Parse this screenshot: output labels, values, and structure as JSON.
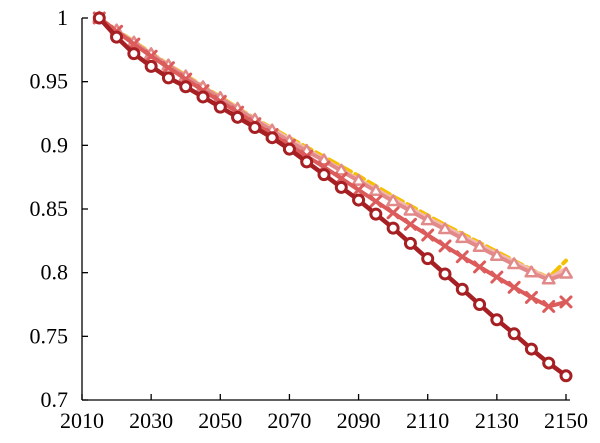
{
  "chart_data": {
    "type": "line",
    "title": "",
    "xlabel": "",
    "ylabel": "",
    "xlim": [
      2010,
      2150
    ],
    "ylim": [
      0.7,
      1.0
    ],
    "x_ticks": [
      "2010",
      "2030",
      "2050",
      "2070",
      "2090",
      "2110",
      "2130",
      "2150"
    ],
    "y_ticks": [
      "0.7",
      "0.75",
      "0.8",
      "0.85",
      "0.9",
      "0.95",
      "1"
    ],
    "grid": false,
    "legend": "none",
    "x": [
      2015,
      2020,
      2025,
      2030,
      2035,
      2040,
      2045,
      2050,
      2055,
      2060,
      2065,
      2070,
      2075,
      2080,
      2085,
      2090,
      2095,
      2100,
      2105,
      2110,
      2115,
      2120,
      2125,
      2130,
      2135,
      2140,
      2145,
      2150
    ],
    "series": [
      {
        "color": "#f5c000",
        "marker": "none",
        "dash": true,
        "values": [
          1.0,
          0.9905,
          0.9815,
          0.9725,
          0.9635,
          0.955,
          0.9465,
          0.938,
          0.9295,
          0.921,
          0.9135,
          0.906,
          0.8985,
          0.891,
          0.8835,
          0.876,
          0.868,
          0.86,
          0.8525,
          0.845,
          0.8375,
          0.8305,
          0.8235,
          0.8165,
          0.8095,
          0.8025,
          0.796,
          0.8095
        ]
      },
      {
        "color": "#f3b8ae",
        "marker": "none",
        "dash": false,
        "values": [
          1.0,
          0.99,
          0.981,
          0.972,
          0.963,
          0.9545,
          0.946,
          0.9375,
          0.929,
          0.9205,
          0.913,
          0.905,
          0.897,
          0.889,
          0.881,
          0.873,
          0.8655,
          0.858,
          0.8505,
          0.843,
          0.836,
          0.829,
          0.822,
          0.815,
          0.8085,
          0.802,
          0.7955,
          0.803
        ]
      },
      {
        "color": "#e28a8a",
        "marker": "triangle",
        "dash": false,
        "values": [
          1.0,
          0.99,
          0.9805,
          0.9715,
          0.9625,
          0.954,
          0.9455,
          0.937,
          0.9285,
          0.92,
          0.9115,
          0.903,
          0.8955,
          0.888,
          0.88,
          0.872,
          0.864,
          0.856,
          0.8485,
          0.841,
          0.834,
          0.827,
          0.82,
          0.813,
          0.8065,
          0.8,
          0.7945,
          0.799
        ]
      },
      {
        "color": "#dc5b5b",
        "marker": "x",
        "dash": false,
        "values": [
          1.0,
          0.9895,
          0.9795,
          0.97,
          0.961,
          0.952,
          0.943,
          0.9345,
          0.926,
          0.917,
          0.9085,
          0.9,
          0.8915,
          0.883,
          0.874,
          0.865,
          0.856,
          0.847,
          0.838,
          0.8295,
          0.821,
          0.8125,
          0.8045,
          0.7965,
          0.7885,
          0.7805,
          0.7735,
          0.777
        ]
      },
      {
        "color": "#a61f23",
        "marker": "circle",
        "dash": false,
        "values": [
          1.0,
          0.985,
          0.972,
          0.962,
          0.953,
          0.946,
          0.938,
          0.93,
          0.922,
          0.914,
          0.906,
          0.897,
          0.887,
          0.877,
          0.867,
          0.857,
          0.846,
          0.835,
          0.823,
          0.811,
          0.799,
          0.787,
          0.775,
          0.763,
          0.752,
          0.74,
          0.729,
          0.719
        ]
      }
    ]
  }
}
